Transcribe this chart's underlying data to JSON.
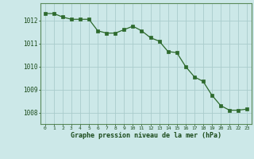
{
  "x": [
    0,
    1,
    2,
    3,
    4,
    5,
    6,
    7,
    8,
    9,
    10,
    11,
    12,
    13,
    14,
    15,
    16,
    17,
    18,
    19,
    20,
    21,
    22,
    23
  ],
  "y": [
    1012.3,
    1012.3,
    1012.15,
    1012.05,
    1012.05,
    1012.05,
    1011.55,
    1011.45,
    1011.45,
    1011.6,
    1011.75,
    1011.55,
    1011.25,
    1011.1,
    1010.65,
    1010.6,
    1010.0,
    1009.55,
    1009.35,
    1008.75,
    1008.3,
    1008.1,
    1008.1,
    1008.15
  ],
  "line_color": "#2d6a2d",
  "marker_color": "#2d6a2d",
  "bg_color": "#cce8e8",
  "grid_color": "#aacccc",
  "xlabel": "Graphe pression niveau de la mer (hPa)",
  "xlabel_color": "#1a4a1a",
  "tick_color": "#1a4a1a",
  "ylim": [
    1007.5,
    1012.75
  ],
  "yticks": [
    1008,
    1009,
    1010,
    1011,
    1012
  ],
  "xlim": [
    -0.5,
    23.5
  ],
  "xticks": [
    0,
    1,
    2,
    3,
    4,
    5,
    6,
    7,
    8,
    9,
    10,
    11,
    12,
    13,
    14,
    15,
    16,
    17,
    18,
    19,
    20,
    21,
    22,
    23
  ]
}
